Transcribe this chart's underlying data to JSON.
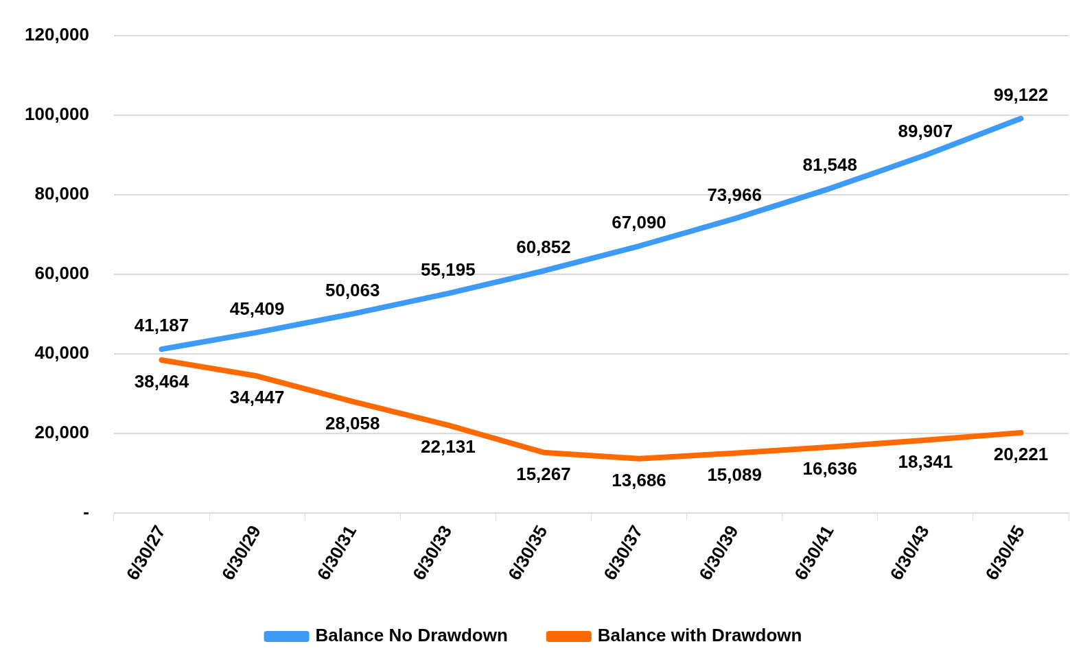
{
  "chart_data": {
    "type": "line",
    "categories": [
      "6/30/27",
      "6/30/29",
      "6/30/31",
      "6/30/33",
      "6/30/35",
      "6/30/37",
      "6/30/39",
      "6/30/41",
      "6/30/43",
      "6/30/45"
    ],
    "series": [
      {
        "name": "Balance No Drawdown",
        "color": "#3d9bf5",
        "values": [
          41187,
          45409,
          50063,
          55195,
          60852,
          67090,
          73966,
          81548,
          89907,
          99122
        ],
        "value_labels": [
          "41,187",
          "45,409",
          "50,063",
          "55,195",
          "60,852",
          "67,090",
          "73,966",
          "81,548",
          "89,907",
          "99,122"
        ]
      },
      {
        "name": "Balance with Drawdown",
        "color": "#ff6a00",
        "values": [
          38464,
          34447,
          28058,
          22131,
          15267,
          13686,
          15089,
          16636,
          18341,
          20221
        ],
        "value_labels": [
          "38,464",
          "34,447",
          "28,058",
          "22,131",
          "15,267",
          "13,686",
          "15,089",
          "16,636",
          "18,341",
          "20,221"
        ]
      }
    ],
    "ylim": [
      0,
      120000
    ],
    "yticks": [
      {
        "value": 0,
        "label": "-"
      },
      {
        "value": 20000,
        "label": "20,000"
      },
      {
        "value": 40000,
        "label": "40,000"
      },
      {
        "value": 60000,
        "label": "60,000"
      },
      {
        "value": 80000,
        "label": "80,000"
      },
      {
        "value": 100000,
        "label": "100,000"
      },
      {
        "value": 120000,
        "label": "120,000"
      }
    ],
    "grid": "y",
    "legend": "bottom",
    "marker": "none",
    "line_style": "solid"
  }
}
